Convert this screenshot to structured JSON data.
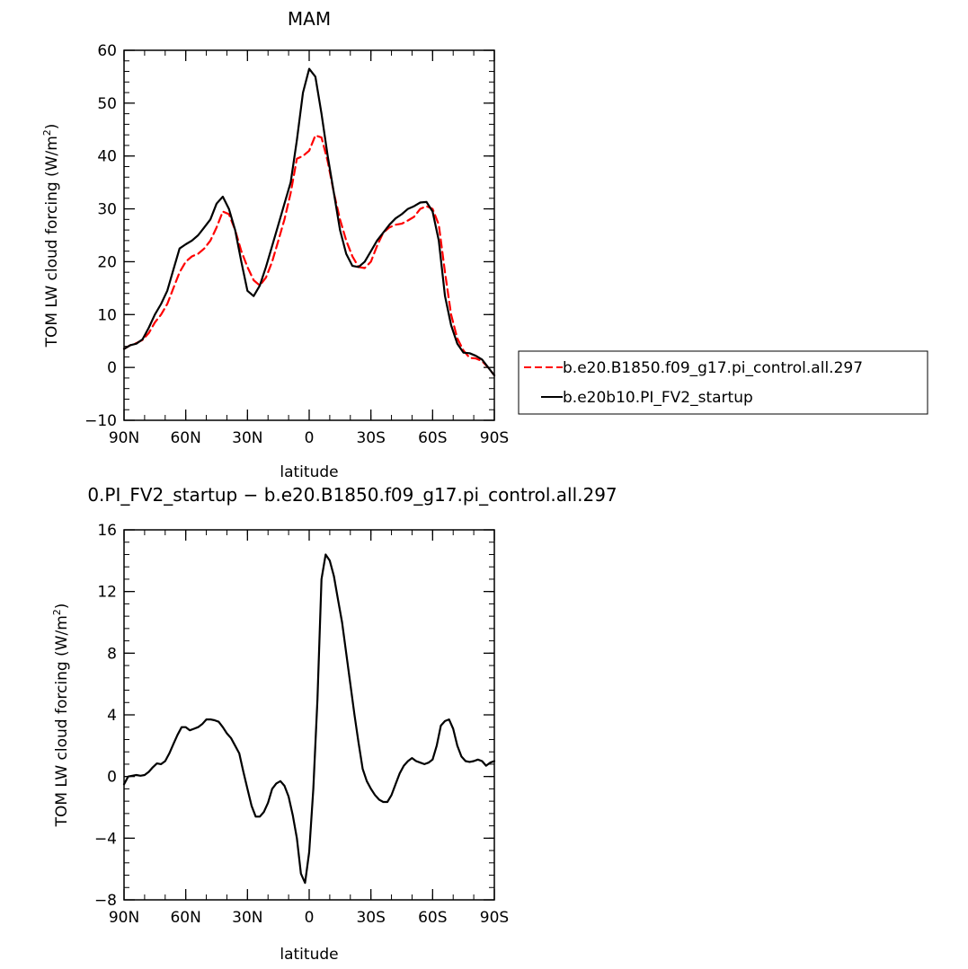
{
  "chart_data": [
    {
      "type": "line",
      "title": "MAM",
      "xlabel": "latitude",
      "ylabel_main": "TOM LW cloud forcing (W/m",
      "ylabel_sup": "2",
      "ylabel_close": ")",
      "xlim": [
        90,
        -90
      ],
      "ylim": [
        -10,
        60
      ],
      "xticks": [
        {
          "value": 90,
          "label": "90N"
        },
        {
          "value": 60,
          "label": "60N"
        },
        {
          "value": 30,
          "label": "30N"
        },
        {
          "value": 0,
          "label": "0"
        },
        {
          "value": -30,
          "label": "30S"
        },
        {
          "value": -60,
          "label": "60S"
        },
        {
          "value": -90,
          "label": "90S"
        }
      ],
      "yticks": [
        {
          "value": -10,
          "label": "−10"
        },
        {
          "value": 0,
          "label": "0"
        },
        {
          "value": 10,
          "label": "10"
        },
        {
          "value": 20,
          "label": "20"
        },
        {
          "value": 30,
          "label": "30"
        },
        {
          "value": 40,
          "label": "40"
        },
        {
          "value": 50,
          "label": "50"
        },
        {
          "value": 60,
          "label": "60"
        }
      ],
      "legend_position": "right",
      "series": [
        {
          "name": "b.e20.B1850.f09_g17.pi_control.all.297",
          "color": "#ff0000",
          "dash": true,
          "x": [
            90,
            87,
            84,
            81,
            78,
            75,
            72,
            69,
            66,
            63,
            60,
            57,
            54,
            51,
            48,
            45,
            42,
            39,
            36,
            33,
            30,
            27,
            24,
            21,
            18,
            15,
            12,
            9,
            6,
            3,
            0,
            -3,
            -6,
            -9,
            -12,
            -15,
            -18,
            -21,
            -24,
            -27,
            -30,
            -33,
            -36,
            -39,
            -42,
            -45,
            -48,
            -51,
            -54,
            -57,
            -60,
            -63,
            -66,
            -69,
            -72,
            -75,
            -78,
            -81,
            -84,
            -87,
            -90
          ],
          "values": [
            3.5,
            4.2,
            4.6,
            5.2,
            6.5,
            8.5,
            10,
            12,
            15,
            18,
            20,
            21,
            21.5,
            22.5,
            24,
            26.5,
            29.5,
            29,
            26,
            22,
            19,
            16.5,
            15.5,
            17,
            20,
            24,
            28,
            33,
            39.5,
            40,
            41,
            43.9,
            43.5,
            39,
            33,
            28,
            24,
            21,
            19,
            18.8,
            20,
            23,
            25.5,
            26.5,
            27,
            27.2,
            27.8,
            28.5,
            30,
            30.5,
            30,
            27,
            18,
            10,
            5.5,
            3.2,
            1.8,
            1.7,
            1.2,
            0,
            -1.5
          ]
        },
        {
          "name": "b.e20b10.PI_FV2_startup",
          "color": "#000000",
          "dash": false,
          "x": [
            90,
            87,
            84,
            81,
            78,
            75,
            72,
            69,
            66,
            63,
            60,
            57,
            54,
            51,
            48,
            45,
            42,
            39,
            36,
            33,
            30,
            27,
            24,
            21,
            18,
            15,
            12,
            9,
            6,
            3,
            0,
            -3,
            -6,
            -9,
            -12,
            -15,
            -18,
            -21,
            -24,
            -27,
            -30,
            -33,
            -36,
            -39,
            -42,
            -45,
            -48,
            -51,
            -54,
            -57,
            -60,
            -63,
            -66,
            -69,
            -72,
            -75,
            -78,
            -81,
            -84,
            -87,
            -90
          ],
          "values": [
            3.5,
            4.2,
            4.5,
            5.3,
            7.5,
            10,
            12,
            14.5,
            18.5,
            22.5,
            23.3,
            24,
            25,
            26.5,
            28,
            31,
            32.3,
            30,
            26,
            20,
            14.5,
            13.5,
            15.5,
            19,
            23,
            27,
            31,
            35,
            43,
            52,
            56.5,
            55,
            48,
            40,
            33,
            26,
            21.5,
            19.2,
            19,
            20,
            22,
            24,
            25.5,
            27,
            28.2,
            29,
            30,
            30.5,
            31.2,
            31.3,
            29.5,
            24,
            13.5,
            8,
            4.5,
            2.8,
            2.7,
            2.2,
            1.5,
            0,
            -1.5
          ]
        }
      ]
    },
    {
      "type": "line",
      "title": "0.PI_FV2_startup − b.e20.B1850.f09_g17.pi_control.all.297",
      "xlabel": "latitude",
      "ylabel_main": "TOM LW cloud forcing (W/m",
      "ylabel_sup": "2",
      "ylabel_close": ")",
      "xlim": [
        90,
        -90
      ],
      "ylim": [
        -8,
        16
      ],
      "xticks": [
        {
          "value": 90,
          "label": "90N"
        },
        {
          "value": 60,
          "label": "60N"
        },
        {
          "value": 30,
          "label": "30N"
        },
        {
          "value": 0,
          "label": "0"
        },
        {
          "value": -30,
          "label": "30S"
        },
        {
          "value": -60,
          "label": "60S"
        },
        {
          "value": -90,
          "label": "90S"
        }
      ],
      "yticks": [
        {
          "value": -8,
          "label": "−8"
        },
        {
          "value": -4,
          "label": "−4"
        },
        {
          "value": 0,
          "label": "0"
        },
        {
          "value": 4,
          "label": "4"
        },
        {
          "value": 8,
          "label": "8"
        },
        {
          "value": 12,
          "label": "12"
        },
        {
          "value": 16,
          "label": "16"
        }
      ],
      "series": [
        {
          "color": "#000000",
          "dash": false,
          "x": [
            90,
            88,
            86,
            84,
            82,
            80,
            78,
            76,
            74,
            72,
            70,
            68,
            66,
            64,
            62,
            60,
            58,
            56,
            54,
            52,
            50,
            48,
            46,
            44,
            42,
            40,
            38,
            36,
            34,
            32,
            30,
            28,
            26,
            24,
            22,
            20,
            18,
            16,
            14,
            12,
            10,
            8,
            6,
            4,
            2,
            0,
            -2,
            -4,
            -6,
            -8,
            -10,
            -12,
            -14,
            -16,
            -18,
            -20,
            -22,
            -24,
            -26,
            -28,
            -30,
            -32,
            -34,
            -36,
            -38,
            -40,
            -42,
            -44,
            -46,
            -48,
            -50,
            -52,
            -54,
            -56,
            -58,
            -60,
            -62,
            -64,
            -66,
            -68,
            -70,
            -72,
            -74,
            -76,
            -78,
            -80,
            -82,
            -84,
            -86,
            -88,
            -90
          ],
          "values": [
            -0.5,
            0,
            0.05,
            0.1,
            0.05,
            0.1,
            0.3,
            0.6,
            0.85,
            0.8,
            1,
            1.5,
            2.1,
            2.7,
            3.2,
            3.2,
            3.0,
            3.1,
            3.2,
            3.4,
            3.7,
            3.7,
            3.65,
            3.55,
            3.2,
            2.8,
            2.5,
            2,
            1.5,
            0.3,
            -0.8,
            -1.9,
            -2.6,
            -2.6,
            -2.3,
            -1.7,
            -0.8,
            -0.45,
            -0.3,
            -0.6,
            -1.3,
            -2.5,
            -4,
            -6.3,
            -6.9,
            -4.9,
            -0.8,
            5,
            12.8,
            14.4,
            14,
            13,
            11.5,
            10,
            8,
            6,
            4,
            2.2,
            0.5,
            -0.3,
            -0.8,
            -1.2,
            -1.5,
            -1.65,
            -1.65,
            -1.2,
            -0.5,
            0.2,
            0.7,
            1,
            1.2,
            1,
            0.9,
            0.8,
            0.9,
            1.1,
            2,
            3.3,
            3.6,
            3.7,
            3.1,
            2,
            1.3,
            1.0,
            0.95,
            1.0,
            1.1,
            1.0,
            0.7,
            0.9,
            1.0
          ]
        }
      ]
    }
  ]
}
